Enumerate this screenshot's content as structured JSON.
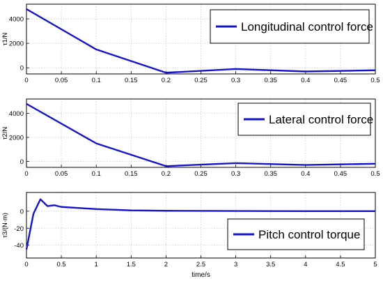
{
  "chart_data": [
    {
      "type": "line",
      "ylabel": "τ1/N",
      "xlim": [
        0,
        0.5
      ],
      "ylim": [
        -500,
        5200
      ],
      "xticks": [
        "0",
        "0.05",
        "0.1",
        "0.15",
        "0.2",
        "0.25",
        "0.3",
        "0.35",
        "0.4",
        "0.45",
        "0.5"
      ],
      "yticks": [
        "0",
        "2000",
        "4000"
      ],
      "grid": true,
      "legend_position": "top-right",
      "color": "#1414cc",
      "series": [
        {
          "name": "Longitudinal control force",
          "x": [
            0,
            0.1,
            0.2,
            0.3,
            0.4,
            0.5
          ],
          "y": [
            4800,
            1500,
            -400,
            -100,
            -300,
            -200
          ]
        }
      ]
    },
    {
      "type": "line",
      "ylabel": "τ2/N",
      "xlim": [
        0,
        0.5
      ],
      "ylim": [
        -500,
        5200
      ],
      "xticks": [
        "0",
        "0.05",
        "0.1",
        "0.15",
        "0.2",
        "0.25",
        "0.3",
        "0.35",
        "0.4",
        "0.45",
        "0.5"
      ],
      "yticks": [
        "0",
        "2000",
        "4000"
      ],
      "grid": true,
      "legend_position": "top-right",
      "color": "#1414cc",
      "series": [
        {
          "name": "Lateral control force",
          "x": [
            0,
            0.1,
            0.2,
            0.3,
            0.4,
            0.5
          ],
          "y": [
            4800,
            1500,
            -400,
            -150,
            -300,
            -200
          ]
        }
      ]
    },
    {
      "type": "line",
      "ylabel": "τ3/(N·m)",
      "xlabel": "time/s",
      "xlim": [
        0,
        5
      ],
      "ylim": [
        -55,
        22
      ],
      "xticks": [
        "0",
        "0.5",
        "1",
        "1.5",
        "2",
        "2.5",
        "3",
        "3.5",
        "4",
        "4.5",
        "5"
      ],
      "yticks": [
        "-40",
        "-20",
        "0"
      ],
      "grid": true,
      "legend_position": "bottom-right",
      "color": "#1414cc",
      "series": [
        {
          "name": "Pitch control torque",
          "x": [
            0,
            0.1,
            0.2,
            0.3,
            0.4,
            0.5,
            0.7,
            1,
            1.5,
            2,
            3,
            4,
            5
          ],
          "y": [
            -45,
            -3,
            14,
            6,
            7,
            5,
            4,
            2.5,
            1,
            0.5,
            0.2,
            0,
            0
          ]
        }
      ]
    }
  ]
}
